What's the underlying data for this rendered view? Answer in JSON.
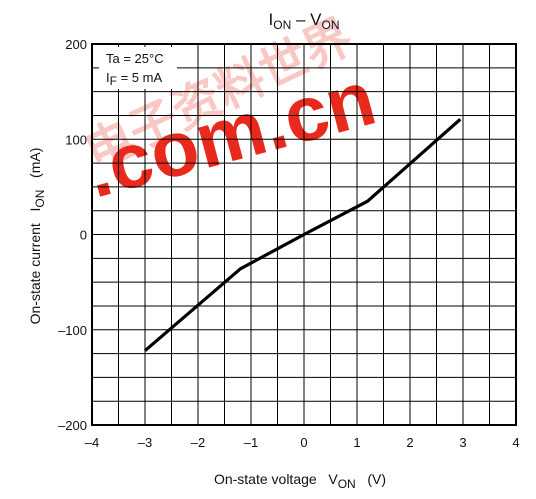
{
  "chart_data": {
    "type": "line",
    "title": {
      "base": "I",
      "sub": "ON",
      "sep": " – V",
      "sub2": "ON"
    },
    "xlabel": {
      "text": "On-state voltage   V",
      "sub": "ON",
      "unit": "   (V)"
    },
    "ylabel": {
      "text": "On-state current   I",
      "sub": "ON",
      "unit": "   (mA)"
    },
    "xlim": [
      -4,
      4
    ],
    "ylim": [
      -200,
      200
    ],
    "x_ticks": [
      -4,
      -3,
      -2,
      -1,
      0,
      1,
      2,
      3,
      4
    ],
    "x_tick_labels": [
      "–4",
      "–3",
      "–2",
      "–1",
      "0",
      "1",
      "2",
      "3",
      "4"
    ],
    "y_ticks": [
      -200,
      -100,
      0,
      100,
      200
    ],
    "y_tick_labels": [
      "–200",
      "–100",
      "0",
      "100",
      "200"
    ],
    "grid": true,
    "grid_x_step": 0.5,
    "grid_y_step": 25,
    "conditions": [
      {
        "base": "Ta",
        "sub": "",
        "text": " = 25°C"
      },
      {
        "base": "I",
        "sub": "F",
        "text": " = 5 mA"
      }
    ],
    "series": [
      {
        "x": [
          -3.0,
          -1.2,
          0.0,
          1.2,
          2.95
        ],
        "y": [
          -122,
          -36,
          0,
          35,
          121
        ]
      }
    ]
  },
  "watermark": {
    "text": ".com.cn",
    "cjk": "电子资料世界",
    "color": "#e8291c"
  }
}
